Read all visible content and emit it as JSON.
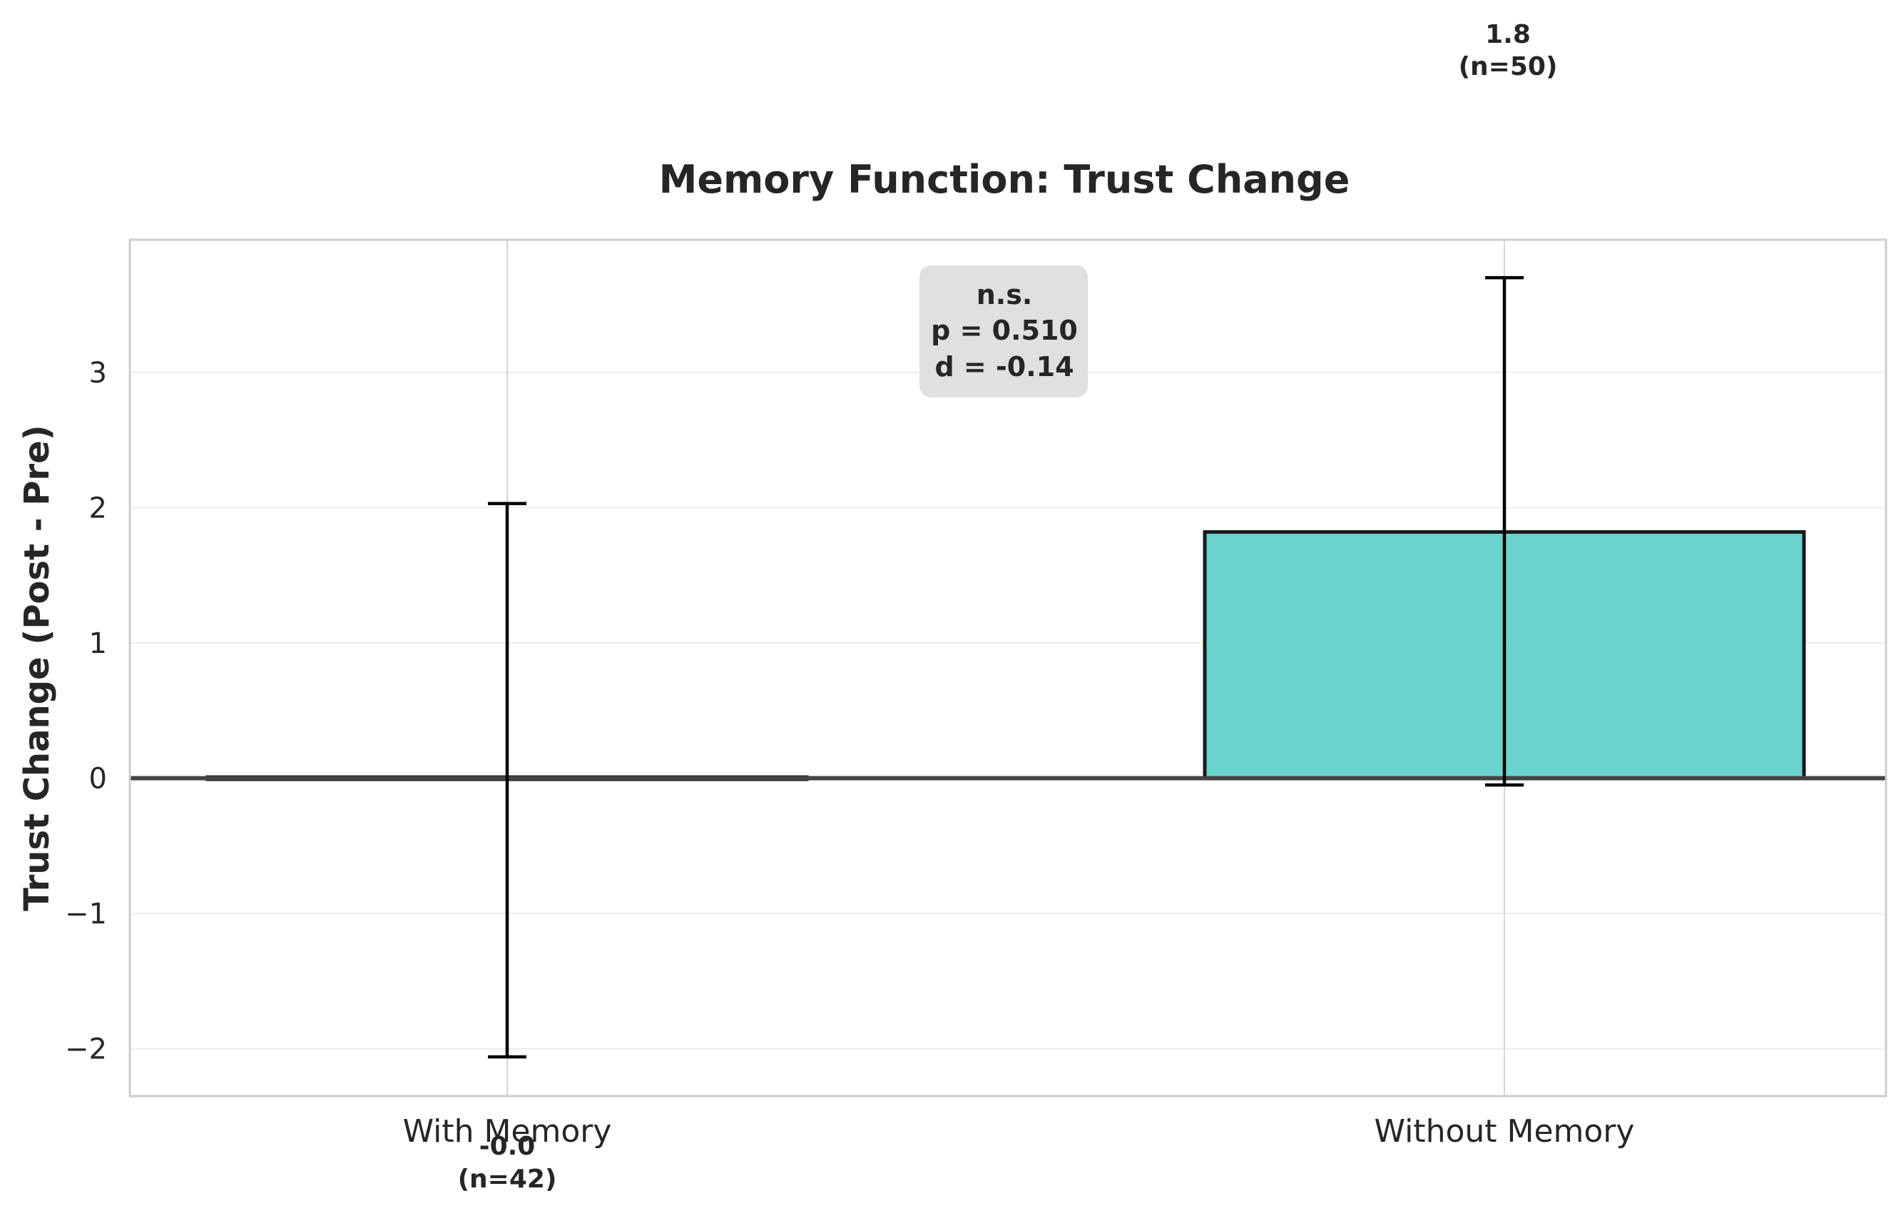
{
  "chart_data": {
    "type": "bar",
    "title": "Memory Function: Trust Change",
    "xlabel": "",
    "ylabel": "Trust Change (Post - Pre)",
    "categories": [
      "With Memory",
      "Without Memory"
    ],
    "values": [
      0.0,
      1.82
    ],
    "error": [
      [
        -2.06,
        2.03
      ],
      [
        -0.05,
        3.7
      ]
    ],
    "value_labels": [
      "-0.0",
      "1.8"
    ],
    "n_labels": [
      "(n=42)",
      "(n=50)"
    ],
    "yticks": [
      -2,
      -1,
      0,
      1,
      2,
      3
    ],
    "ytick_labels": [
      "−2",
      "−1",
      "0",
      "1",
      "2",
      "3"
    ],
    "ylim": [
      -2.35,
      3.98
    ],
    "grid": true,
    "legend": "none",
    "annotation": {
      "lines": [
        "n.s.",
        "p = 0.510",
        "d = -0.14"
      ]
    },
    "colors": {
      "with_memory": "#ff6b6b",
      "without_memory": "#4ecdc4",
      "edge": "#1a1a1a",
      "annotation_bg": "#e0e0e0",
      "grid": "#ebebeb",
      "axes_border": "#cccccc"
    }
  }
}
